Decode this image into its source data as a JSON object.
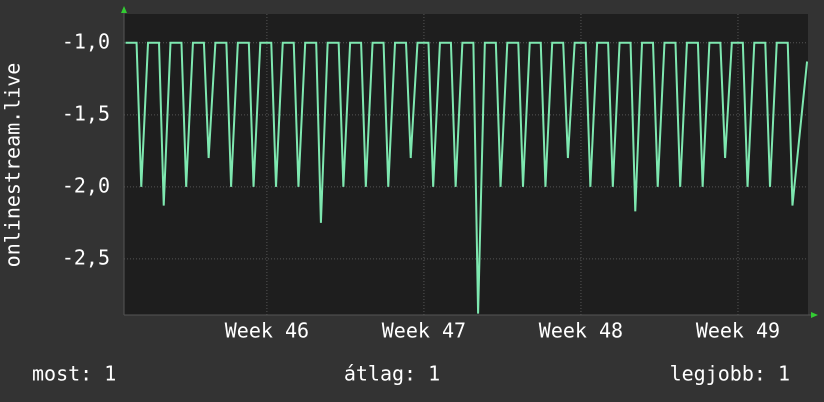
{
  "chart_data": {
    "type": "line",
    "ylabel": "onlinestream.live",
    "x": [
      45.1,
      45.17,
      45.2,
      45.243,
      45.313,
      45.343,
      45.386,
      45.456,
      45.486,
      45.529,
      45.599,
      45.629,
      45.672,
      45.742,
      45.772,
      45.815,
      45.885,
      45.915,
      45.958,
      46.028,
      46.058,
      46.101,
      46.171,
      46.201,
      46.244,
      46.314,
      46.344,
      46.387,
      46.457,
      46.487,
      46.53,
      46.6,
      46.63,
      46.673,
      46.743,
      46.773,
      46.816,
      46.886,
      46.916,
      46.959,
      47.029,
      47.059,
      47.102,
      47.172,
      47.202,
      47.245,
      47.315,
      47.345,
      47.388,
      47.458,
      47.488,
      47.531,
      47.601,
      47.631,
      47.674,
      47.744,
      47.774,
      47.817,
      47.887,
      47.917,
      47.96,
      48.03,
      48.06,
      48.103,
      48.173,
      48.203,
      48.246,
      48.316,
      48.346,
      48.389,
      48.459,
      48.489,
      48.532,
      48.602,
      48.632,
      48.675,
      48.745,
      48.775,
      48.818,
      48.888,
      48.918,
      48.961,
      49.031,
      49.061,
      49.104,
      49.174,
      49.204,
      49.247,
      49.317,
      49.347,
      49.44
    ],
    "series": [
      {
        "color": "#7ee8b0",
        "values": [
          -1,
          -1,
          -2,
          -1,
          -1,
          -2.13,
          -1,
          -1,
          -2,
          -1,
          -1,
          -1.8,
          -1,
          -1,
          -2,
          -1,
          -1,
          -2,
          -1,
          -1,
          -2,
          -1,
          -1,
          -2,
          -1,
          -1,
          -2.25,
          -1,
          -1,
          -2,
          -1,
          -1,
          -2,
          -1,
          -1,
          -2,
          -1,
          -1,
          -1.8,
          -1,
          -1,
          -2,
          -1,
          -1,
          -2,
          -1,
          -1,
          -2.88,
          -1,
          -1,
          -2,
          -1,
          -1,
          -2,
          -1,
          -1,
          -2,
          -1,
          -1,
          -1.8,
          -1,
          -1,
          -2,
          -1,
          -1,
          -2,
          -1,
          -1,
          -2.17,
          -1,
          -1,
          -2,
          -1,
          -1,
          -2,
          -1,
          -1,
          -2,
          -1,
          -1,
          -1.8,
          -1,
          -1,
          -2,
          -1,
          -1,
          -2,
          -1,
          -1,
          -2.13,
          -1.13
        ]
      }
    ],
    "xlim": [
      45.09,
      49.446
    ],
    "xticks": [
      {
        "value": 46,
        "label": "Week 46"
      },
      {
        "value": 47,
        "label": "Week 47"
      },
      {
        "value": 48,
        "label": "Week 48"
      },
      {
        "value": 49,
        "label": "Week 49"
      }
    ],
    "ylim": [
      -2.89,
      -0.8
    ],
    "yticks": [
      {
        "value": -1,
        "label": "-1,0"
      },
      {
        "value": -1.5,
        "label": "-1,5"
      },
      {
        "value": -2,
        "label": "-2,0"
      },
      {
        "value": -2.5,
        "label": "-2,5"
      }
    ],
    "grid": true,
    "legend_items": [
      "most: 1",
      "átlag: 1",
      "legjobb: 1"
    ]
  }
}
